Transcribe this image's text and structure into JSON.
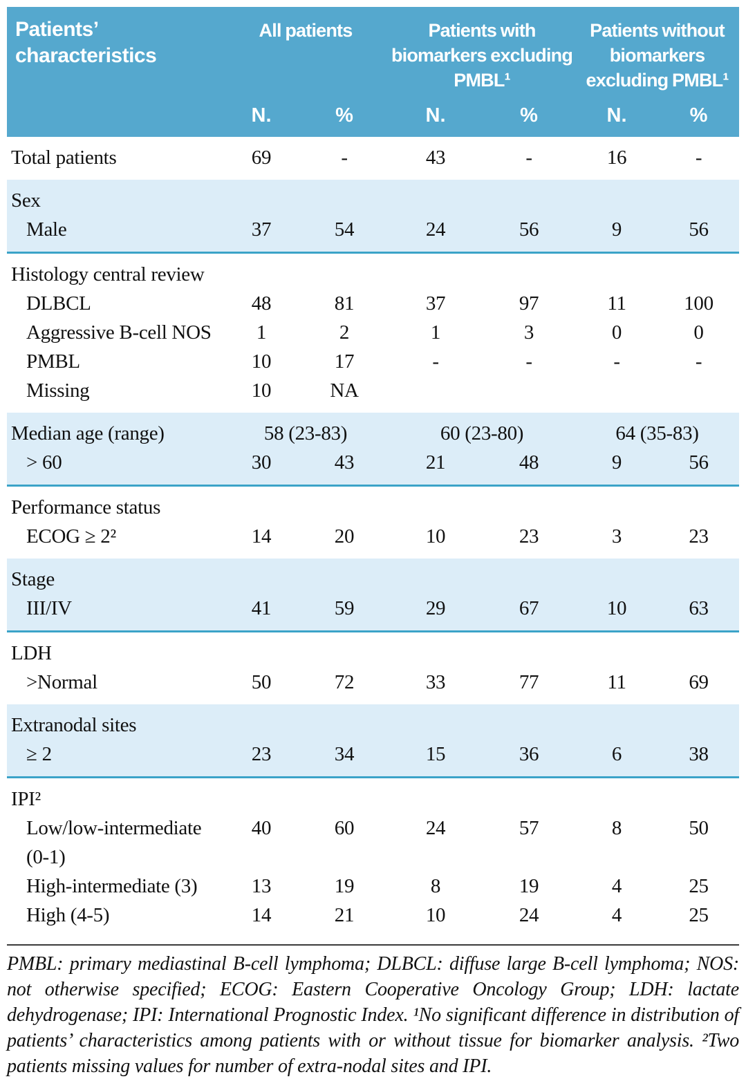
{
  "colors": {
    "header_bg": "#55A8CE",
    "row_shade": "#DCEDF8",
    "teal_line": "#3BA3C8",
    "footnote_rule": "#3a3a3a"
  },
  "table": {
    "header": {
      "row_label": "Patients’ characteristics",
      "groups": [
        {
          "label": "All patients"
        },
        {
          "label": "Patients with biomarkers excluding PMBL¹"
        },
        {
          "label": "Patients without biomarkers excluding PMBL¹"
        }
      ],
      "subheaders": [
        "N.",
        "%",
        "N.",
        "%",
        "N.",
        "%"
      ]
    },
    "sections": [
      {
        "shaded": false,
        "rows": [
          {
            "label": "Total patients",
            "indent": false,
            "values": [
              "69",
              "-",
              "43",
              "-",
              "16",
              "-"
            ]
          }
        ]
      },
      {
        "shaded": true,
        "rows": [
          {
            "label": "Sex"
          },
          {
            "label": "Male",
            "indent": true,
            "values": [
              "37",
              "54",
              "24",
              "56",
              "9",
              "56"
            ]
          }
        ]
      },
      {
        "shaded": false,
        "rows": [
          {
            "label": "Histology central review"
          },
          {
            "label": "DLBCL",
            "indent": true,
            "values": [
              "48",
              "81",
              "37",
              "97",
              "11",
              "100"
            ]
          },
          {
            "label": "Aggressive B-cell NOS",
            "indent": true,
            "values": [
              "1",
              "2",
              "1",
              "3",
              "0",
              "0"
            ]
          },
          {
            "label": "PMBL",
            "indent": true,
            "values": [
              "10",
              "17",
              "-",
              "-",
              "-",
              "-"
            ]
          },
          {
            "label": "Missing",
            "indent": true,
            "values": [
              "10",
              "NA",
              "",
              "",
              "",
              ""
            ]
          }
        ]
      },
      {
        "shaded": true,
        "rows": [
          {
            "label": "Median age (range)",
            "span_values": [
              "58 (23-83)",
              "60 (23-80)",
              "64 (35-83)"
            ]
          },
          {
            "label": "> 60",
            "indent": true,
            "values": [
              "30",
              "43",
              "21",
              "48",
              "9",
              "56"
            ]
          }
        ]
      },
      {
        "shaded": false,
        "rows": [
          {
            "label": "Performance status"
          },
          {
            "label": "ECOG ≥ 2²",
            "indent": true,
            "values": [
              "14",
              "20",
              "10",
              "23",
              "3",
              "23"
            ]
          }
        ]
      },
      {
        "shaded": true,
        "rows": [
          {
            "label": "Stage"
          },
          {
            "label": "III/IV",
            "indent": true,
            "values": [
              "41",
              "59",
              "29",
              "67",
              "10",
              "63"
            ]
          }
        ]
      },
      {
        "shaded": false,
        "rows": [
          {
            "label": "LDH"
          },
          {
            "label": ">Normal",
            "indent": true,
            "values": [
              "50",
              "72",
              "33",
              "77",
              "11",
              "69"
            ]
          }
        ]
      },
      {
        "shaded": true,
        "rows": [
          {
            "label": "Extranodal sites"
          },
          {
            "label": "≥ 2",
            "indent": true,
            "values": [
              "23",
              "34",
              "15",
              "36",
              "6",
              "38"
            ]
          }
        ]
      },
      {
        "shaded": false,
        "rows": [
          {
            "label": "IPI²"
          },
          {
            "label": "Low/low-intermediate (0-1)",
            "indent": true,
            "values": [
              "40",
              "60",
              "24",
              "57",
              "8",
              "50"
            ]
          },
          {
            "label": "High-intermediate (3)",
            "indent": true,
            "values": [
              "13",
              "19",
              "8",
              "19",
              "4",
              "25"
            ]
          },
          {
            "label": "High (4-5)",
            "indent": true,
            "values": [
              "14",
              "21",
              "10",
              "24",
              "4",
              "25"
            ]
          }
        ]
      }
    ],
    "footnote": "PMBL: primary mediastinal B-cell lymphoma; DLBCL: diffuse large B-cell lymphoma; NOS: not otherwise specified; ECOG: Eastern Cooperative Oncology Group; LDH: lactate dehydrogenase; IPI: International Prognostic Index. ¹No significant difference in distribution of patients’ characteristics among patients with or without tissue for biomarker analysis. ²Two patients missing values for number of extra-nodal sites and IPI."
  }
}
